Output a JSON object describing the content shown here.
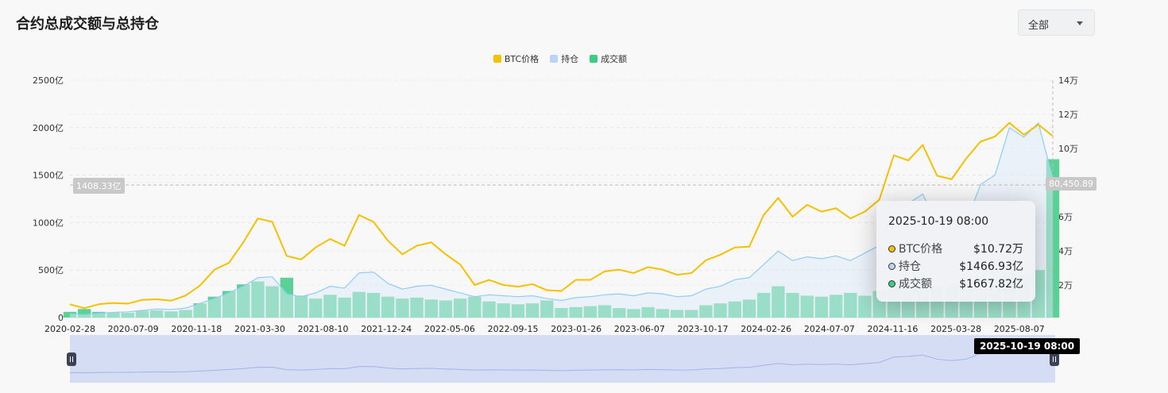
{
  "header": {
    "title": "合约总成交额与总持仓",
    "range_select": {
      "selected": "全部"
    }
  },
  "colors": {
    "price": "#f5c000",
    "open_interest": "#8ecdf7",
    "volume": "#3ecb85"
  },
  "chart_data": {
    "type": "line+bar",
    "legend": {
      "position": "top",
      "items": [
        "BTC价格",
        "持仓",
        "成交额"
      ]
    },
    "x_ticks": [
      "2020-02-28",
      "2020-07-09",
      "2020-11-18",
      "2021-03-30",
      "2021-08-10",
      "2021-12-24",
      "2022-05-06",
      "2022-09-15",
      "2023-01-26",
      "2023-06-07",
      "2023-10-17",
      "2024-02-26",
      "2024-07-07",
      "2024-11-16",
      "2025-03-28",
      "2025-08-07"
    ],
    "y_left": {
      "ticks": [
        "0",
        "500亿",
        "1000亿",
        "1500亿",
        "2000亿",
        "2500亿"
      ],
      "range": [
        0,
        2500
      ],
      "unit": "亿"
    },
    "y_right": {
      "ticks": [
        "2万",
        "4万",
        "6万",
        "8万",
        "10万",
        "12万",
        "14万"
      ],
      "range": [
        0,
        14
      ],
      "unit": "万"
    },
    "x_range": [
      "2020-02-28",
      "2025-10-19"
    ],
    "grid": true,
    "series": [
      {
        "name": "BTC价格",
        "axis": "right",
        "type": "line",
        "values": [
          0.87,
          0.64,
          0.88,
          0.95,
          0.91,
          1.13,
          1.17,
          1.08,
          1.38,
          1.97,
          2.9,
          3.3,
          4.5,
          5.9,
          5.7,
          3.7,
          3.5,
          4.2,
          4.7,
          4.3,
          6.1,
          5.7,
          4.6,
          3.8,
          4.3,
          4.5,
          3.8,
          3.2,
          2.0,
          2.3,
          2.0,
          1.9,
          2.05,
          1.7,
          1.65,
          2.3,
          2.3,
          2.8,
          2.9,
          2.7,
          3.05,
          2.9,
          2.6,
          2.7,
          3.45,
          3.77,
          4.2,
          4.25,
          6.1,
          7.1,
          6.0,
          6.7,
          6.3,
          6.5,
          5.9,
          6.3,
          7.0,
          9.6,
          9.3,
          10.2,
          8.4,
          8.2,
          9.4,
          10.4,
          10.7,
          11.5,
          10.8,
          11.4,
          10.72
        ]
      },
      {
        "name": "持仓",
        "axis": "left",
        "type": "area",
        "values": [
          40,
          30,
          45,
          55,
          60,
          75,
          90,
          85,
          100,
          150,
          200,
          260,
          330,
          420,
          430,
          250,
          220,
          260,
          330,
          310,
          470,
          480,
          360,
          300,
          330,
          340,
          300,
          260,
          220,
          240,
          230,
          220,
          230,
          200,
          180,
          210,
          220,
          240,
          250,
          230,
          260,
          250,
          220,
          230,
          300,
          330,
          400,
          420,
          560,
          700,
          600,
          640,
          620,
          650,
          600,
          680,
          760,
          1150,
          1200,
          1300,
          1000,
          900,
          1000,
          1400,
          1500,
          2000,
          1900,
          2050,
          1466.93
        ]
      },
      {
        "name": "成交额",
        "axis": "left",
        "type": "bar",
        "values": [
          60,
          90,
          60,
          55,
          50,
          70,
          75,
          65,
          80,
          150,
          220,
          280,
          350,
          380,
          330,
          420,
          230,
          200,
          240,
          210,
          270,
          260,
          220,
          200,
          210,
          190,
          180,
          200,
          220,
          170,
          150,
          140,
          150,
          180,
          100,
          110,
          120,
          130,
          100,
          90,
          110,
          90,
          80,
          80,
          130,
          150,
          170,
          190,
          260,
          330,
          260,
          230,
          220,
          240,
          260,
          230,
          280,
          400,
          380,
          400,
          330,
          350,
          360,
          380,
          400,
          470,
          450,
          500,
          1667.82
        ]
      }
    ],
    "crosshair": {
      "date": "2025-10-19 08:00",
      "left_value": "1408.33亿",
      "right_value": "80,450.89"
    }
  },
  "tooltip": {
    "date": "2025-10-19 08:00",
    "rows": [
      {
        "label": "BTC价格",
        "value": "$10.72万",
        "color": "#f5c000"
      },
      {
        "label": "持仓",
        "value": "$1466.93亿",
        "color": "#bcd3f7"
      },
      {
        "label": "成交额",
        "value": "$1667.82亿",
        "color": "#3ecb85"
      }
    ]
  }
}
